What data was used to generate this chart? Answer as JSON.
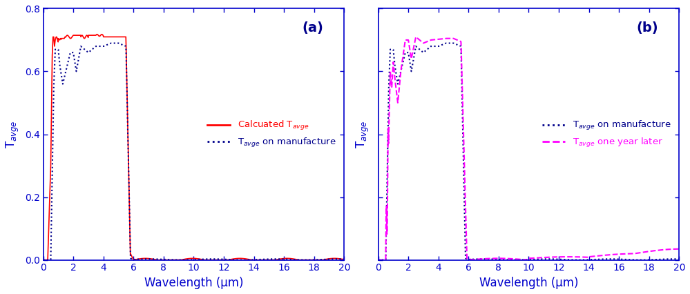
{
  "fig_width": 9.99,
  "fig_height": 4.26,
  "dpi": 100,
  "xlim": [
    0,
    20
  ],
  "ylim": [
    0,
    0.8
  ],
  "xticks": [
    0,
    2,
    4,
    6,
    8,
    10,
    12,
    14,
    16,
    18,
    20
  ],
  "yticks": [
    0.0,
    0.2,
    0.4,
    0.6,
    0.8
  ],
  "xlabel": "Wavelength (μm)",
  "ylabel": "T$_{avge}$",
  "panel_a_label": "(a)",
  "panel_b_label": "(b)",
  "axis_color": "#0000CC",
  "panel_a_legend1_text": "Calcuated T$_{avge}$",
  "panel_a_legend2_text": "T$_{avge}$ on manufacture",
  "panel_b_legend1_text": "T$_{avge}$ on manufacture",
  "panel_b_legend2_text": "T$_{avge}$ one year later",
  "red_color": "#FF0000",
  "blue_color": "#00008B",
  "magenta_color": "#FF00FF"
}
